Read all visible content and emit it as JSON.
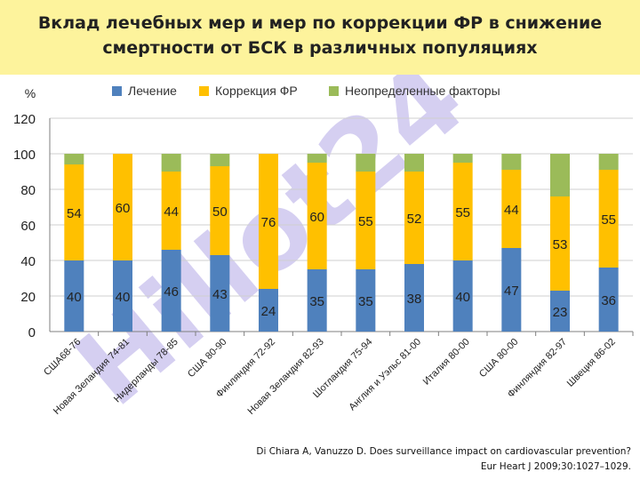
{
  "header": {
    "title_line1": "Вклад лечебных мер и мер по коррекции ФР в снижение",
    "title_line2": "смертности от БСК в различных популяциях"
  },
  "watermark": "Hillot24",
  "source": {
    "line1": "Di Chiara A, Vanuzzo D. Does surveillance impact on cardiovascular prevention?",
    "line2": "Eur Heart J 2009;30:1027–1029."
  },
  "chart_data": {
    "type": "bar",
    "stacked": true,
    "ylabel": "%",
    "ylim": [
      0,
      120
    ],
    "yticks": [
      0,
      20,
      40,
      60,
      80,
      100,
      120
    ],
    "grid": true,
    "legend_position": "top",
    "categories": [
      "США68-76",
      "Новая Зеландия 74-81",
      "Нидерланды 78-85",
      "США 80-90",
      "Финляндия 72-92",
      "Новая Зеландия 82-93",
      "Шотландия 75-94",
      "Англия и Уэльс 81-00",
      "Италия 80-00",
      "США 80-00",
      "Финляндия 82-97",
      "Швеция 86-02"
    ],
    "series": [
      {
        "name": "Лечение",
        "color": "#4f81bd",
        "values": [
          40,
          40,
          46,
          43,
          24,
          35,
          35,
          38,
          40,
          47,
          23,
          36
        ]
      },
      {
        "name": "Коррекция ФР",
        "color": "#ffc000",
        "values": [
          54,
          60,
          44,
          50,
          76,
          60,
          55,
          52,
          55,
          44,
          53,
          55
        ]
      },
      {
        "name": "Неопределенные факторы",
        "color": "#9bbb59",
        "values": [
          6,
          0,
          10,
          7,
          0,
          5,
          10,
          10,
          5,
          9,
          24,
          9
        ]
      }
    ],
    "data_labels": [
      [
        40,
        40,
        46,
        43,
        24,
        35,
        35,
        38,
        40,
        47,
        23,
        36
      ],
      [
        54,
        60,
        44,
        50,
        76,
        60,
        55,
        52,
        55,
        44,
        53,
        55
      ]
    ]
  }
}
